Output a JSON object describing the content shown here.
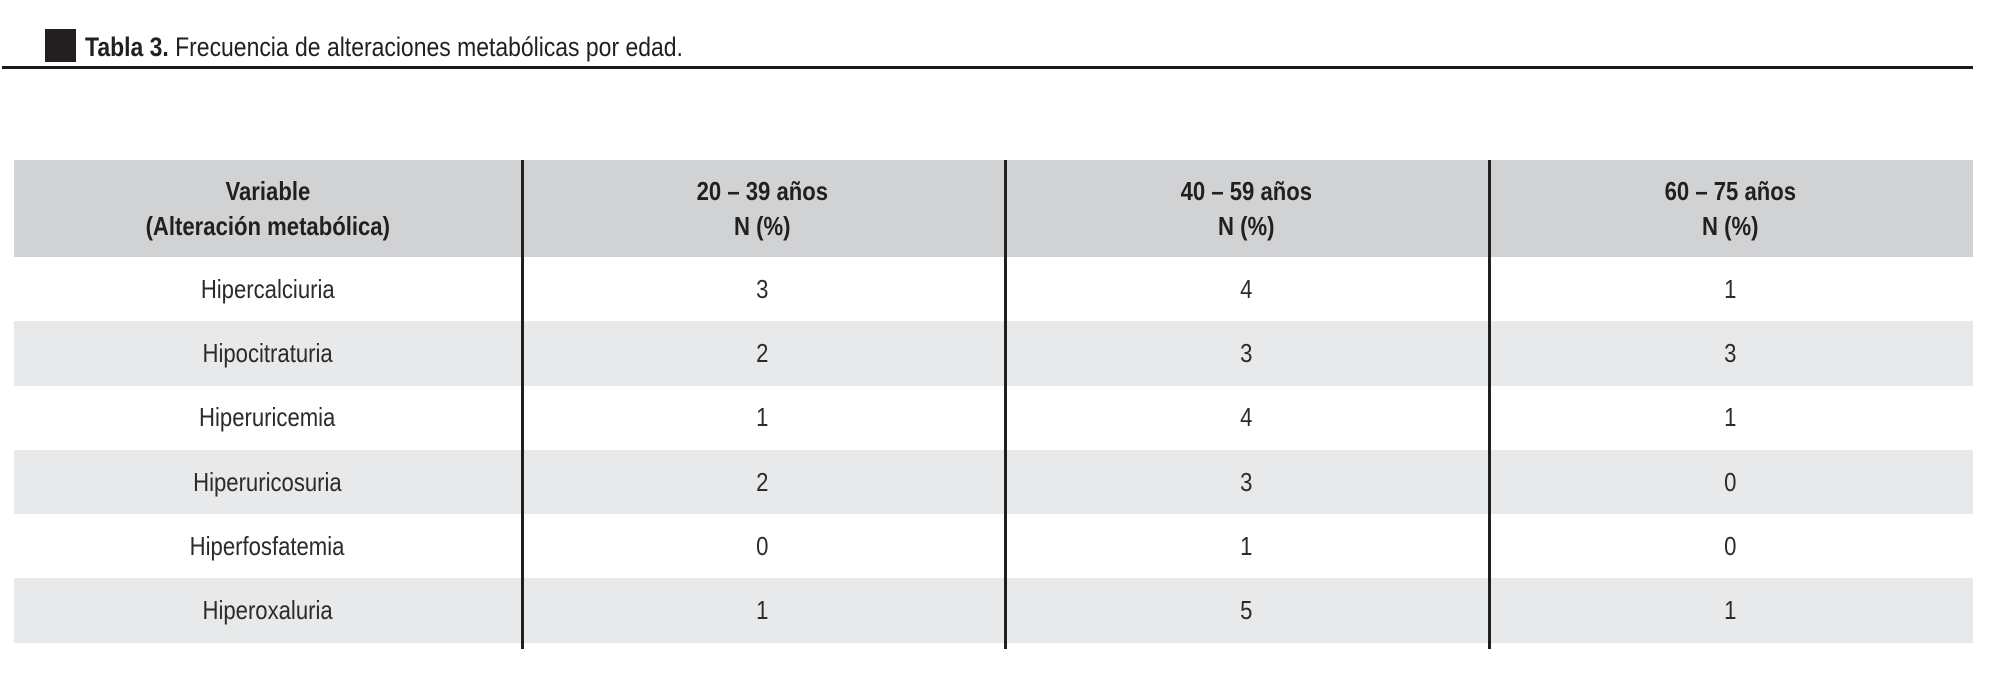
{
  "caption": {
    "label_bold": "Tabla 3.",
    "label_rest": " Frecuencia de alteraciones metabólicas por edad."
  },
  "table": {
    "columns": [
      {
        "line1": "Variable",
        "line2": "(Alteración metabólica)"
      },
      {
        "line1": "20 – 39 años",
        "line2": "N (%)"
      },
      {
        "line1": "40 – 59 años",
        "line2": "N (%)"
      },
      {
        "line1": "60 – 75 años",
        "line2": "N (%)"
      }
    ],
    "rows": [
      {
        "variable": "Hipercalciuria",
        "values": [
          "3",
          "4",
          "1"
        ]
      },
      {
        "variable": "Hipocitraturia",
        "values": [
          "2",
          "3",
          "3"
        ]
      },
      {
        "variable": "Hiperuricemia",
        "values": [
          "1",
          "4",
          "1"
        ]
      },
      {
        "variable": "Hiperuricosuria",
        "values": [
          "2",
          "3",
          "0"
        ]
      },
      {
        "variable": "Hiperfosfatemia",
        "values": [
          "0",
          "1",
          "0"
        ]
      },
      {
        "variable": "Hiperoxaluria",
        "values": [
          "1",
          "5",
          "1"
        ]
      }
    ]
  },
  "colors": {
    "header_bg": "#d1d2d4",
    "row_alt_bg": "#e8e9ea",
    "text": "#231f20",
    "rule": "#1a1a1a"
  }
}
